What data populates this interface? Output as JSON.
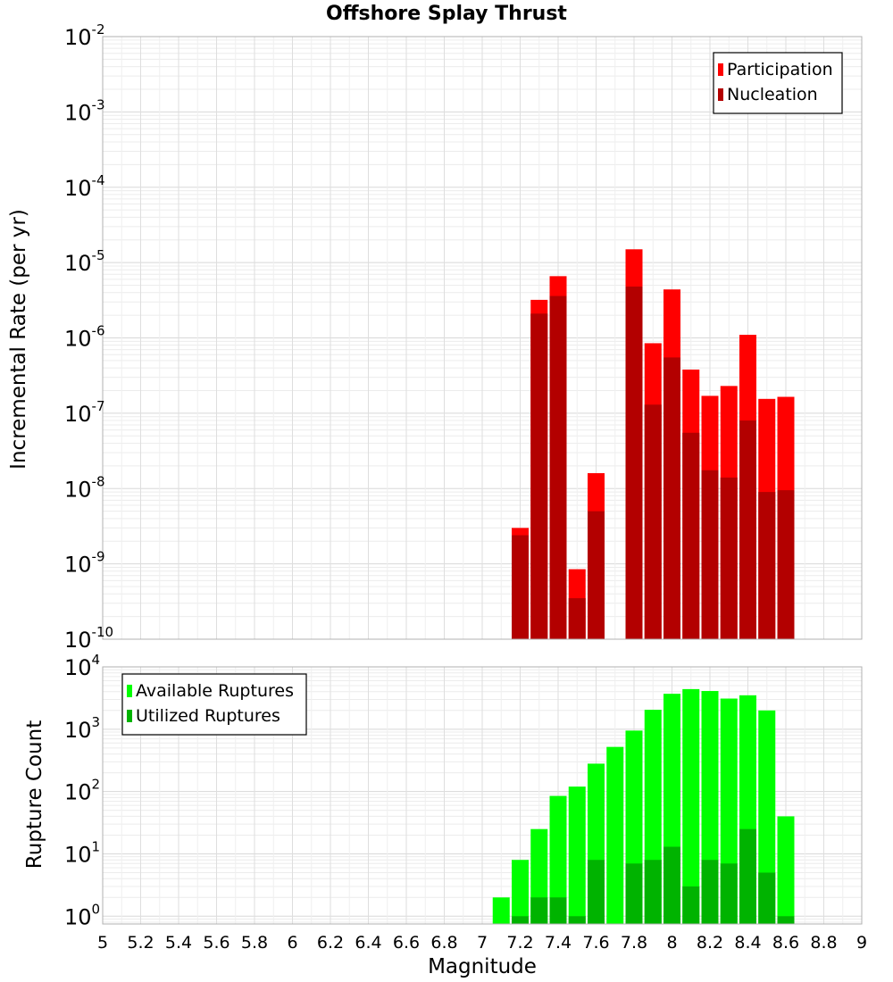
{
  "chart_data": [
    {
      "type": "bar",
      "title": "Offshore Splay Thrust",
      "xlabel": "",
      "ylabel": "Incremental Rate (per yr)",
      "yscale": "log",
      "ylim": [
        1e-10,
        0.01
      ],
      "xlim": [
        5,
        9
      ],
      "grid": true,
      "legend_placement": "top-right",
      "x": [
        7.2,
        7.3,
        7.4,
        7.5,
        7.6,
        7.8,
        7.9,
        8.0,
        8.1,
        8.2,
        8.3,
        8.4,
        8.5,
        8.6
      ],
      "series": [
        {
          "name": "Participation",
          "color": "#ff0000",
          "values": [
            3e-09,
            3.2e-06,
            6.6e-06,
            8.5e-10,
            1.6e-08,
            1.5e-05,
            8.5e-07,
            4.4e-06,
            3.8e-07,
            1.7e-07,
            2.3e-07,
            1.1e-06,
            1.55e-07,
            1.65e-07
          ]
        },
        {
          "name": "Nucleation",
          "color": "#b30000",
          "values": [
            2.4e-09,
            2.1e-06,
            3.6e-06,
            3.5e-10,
            5e-09,
            4.8e-06,
            1.3e-07,
            5.5e-07,
            5.5e-08,
            1.75e-08,
            1.4e-08,
            8e-08,
            9e-09,
            9.5e-09
          ]
        }
      ]
    },
    {
      "type": "bar",
      "title": "",
      "xlabel": "Magnitude",
      "ylabel": "Rupture Count",
      "yscale": "log",
      "ylim": [
        0.75,
        10000
      ],
      "xlim": [
        5,
        9
      ],
      "grid": true,
      "legend_placement": "top-left",
      "x": [
        7.1,
        7.2,
        7.3,
        7.4,
        7.5,
        7.6,
        7.7,
        7.8,
        7.9,
        8.0,
        8.1,
        8.2,
        8.3,
        8.4,
        8.5,
        8.6
      ],
      "series": [
        {
          "name": "Available Ruptures",
          "color": "#00ff00",
          "values": [
            2,
            8,
            25,
            85,
            120,
            280,
            520,
            950,
            2050,
            3700,
            4400,
            4100,
            3100,
            3500,
            2000,
            40
          ]
        },
        {
          "name": "Utilized Ruptures",
          "color": "#00b300",
          "values": [
            0,
            1,
            2,
            2,
            1,
            8,
            0,
            7,
            8,
            13,
            3,
            8,
            7,
            25,
            5,
            1
          ]
        }
      ],
      "xticks": [
        "5",
        "5.2",
        "5.4",
        "5.6",
        "5.8",
        "6",
        "6.2",
        "6.4",
        "6.6",
        "6.8",
        "7",
        "7.2",
        "7.4",
        "7.6",
        "7.8",
        "8",
        "8.2",
        "8.4",
        "8.6",
        "8.8",
        "9"
      ]
    }
  ],
  "top_yticks": [
    {
      "base": "10",
      "exp": "-10"
    },
    {
      "base": "10",
      "exp": "-9"
    },
    {
      "base": "10",
      "exp": "-8"
    },
    {
      "base": "10",
      "exp": "-7"
    },
    {
      "base": "10",
      "exp": "-6"
    },
    {
      "base": "10",
      "exp": "-5"
    },
    {
      "base": "10",
      "exp": "-4"
    },
    {
      "base": "10",
      "exp": "-3"
    },
    {
      "base": "10",
      "exp": "-2"
    }
  ],
  "bottom_yticks": [
    {
      "base": "10",
      "exp": "0"
    },
    {
      "base": "10",
      "exp": "1"
    },
    {
      "base": "10",
      "exp": "2"
    },
    {
      "base": "10",
      "exp": "3"
    },
    {
      "base": "10",
      "exp": "4"
    }
  ]
}
